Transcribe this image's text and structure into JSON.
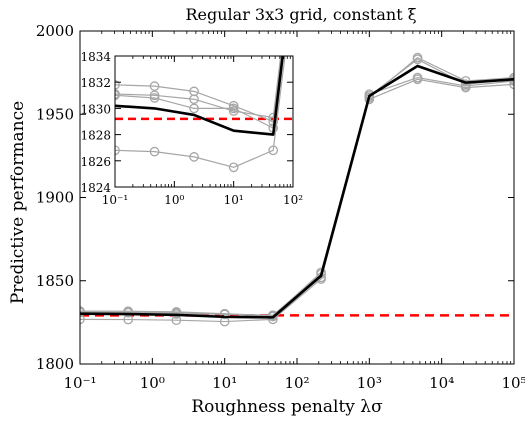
{
  "chart_data": {
    "type": "line",
    "title": "Regular 3x3 grid, constant ξ",
    "xlabel": "Roughness penalty λσ",
    "ylabel": "Predictive performance",
    "xscale": "log",
    "xlim": [
      0.1,
      100000
    ],
    "ylim": [
      1800,
      2000
    ],
    "x_ticks": [
      {
        "value": 0.1,
        "label": "10⁻¹"
      },
      {
        "value": 1,
        "label": "10⁰"
      },
      {
        "value": 10,
        "label": "10¹"
      },
      {
        "value": 100,
        "label": "10²"
      },
      {
        "value": 1000,
        "label": "10³"
      },
      {
        "value": 10000,
        "label": "10⁴"
      },
      {
        "value": 100000,
        "label": "10⁵"
      }
    ],
    "y_ticks": [
      {
        "value": 1800,
        "label": "1800"
      },
      {
        "value": 1850,
        "label": "1850"
      },
      {
        "value": 1900,
        "label": "1900"
      },
      {
        "value": 1950,
        "label": "1950"
      },
      {
        "value": 2000,
        "label": "2000"
      }
    ],
    "x": [
      0.1,
      0.464,
      2.15,
      10,
      46.4,
      215,
      1000,
      4640,
      21500,
      100000
    ],
    "series": [
      {
        "values": [
          1830.2,
          1830.0,
          1829.5,
          1828.3,
          1828.0,
          1853,
          1961,
          1979,
          1969,
          1971
        ],
        "color": "#000000",
        "style": "solid-thick",
        "marker": "none"
      },
      {
        "values": [
          1831.8,
          1831.7,
          1831.3,
          1830.2,
          1829.0,
          1852,
          1960,
          1984,
          1970,
          1972
        ],
        "color": "#a6a6a6",
        "style": "solid",
        "marker": "circle"
      },
      {
        "values": [
          1831.1,
          1831.0,
          1830.7,
          1829.8,
          1829.3,
          1854,
          1961,
          1983,
          1968,
          1971
        ],
        "color": "#a6a6a6",
        "style": "solid",
        "marker": "circle"
      },
      {
        "values": [
          1831.0,
          1830.8,
          1830.0,
          1830.0,
          1828.5,
          1855,
          1962,
          1972,
          1967,
          1970
        ],
        "color": "#a6a6a6",
        "style": "solid",
        "marker": "circle"
      },
      {
        "values": [
          1826.8,
          1826.7,
          1826.3,
          1825.5,
          1826.8,
          1851,
          1959,
          1971,
          1966,
          1968
        ],
        "color": "#a6a6a6",
        "style": "solid",
        "marker": "circle"
      }
    ],
    "reference_line": {
      "value": 1829.2,
      "color": "#ff0000",
      "style": "dashed"
    },
    "inset": {
      "xscale": "log",
      "xlim": [
        0.1,
        100
      ],
      "ylim": [
        1824,
        1834
      ],
      "x_ticks": [
        {
          "value": 0.1,
          "label": "10⁻¹"
        },
        {
          "value": 1,
          "label": "10⁰"
        },
        {
          "value": 10,
          "label": "10¹"
        },
        {
          "value": 100,
          "label": "10²"
        }
      ],
      "y_ticks": [
        {
          "value": 1824,
          "label": "1824"
        },
        {
          "value": 1826,
          "label": "1826"
        },
        {
          "value": 1828,
          "label": "1828"
        },
        {
          "value": 1830,
          "label": "1830"
        },
        {
          "value": 1832,
          "label": "1832"
        },
        {
          "value": 1834,
          "label": "1834"
        }
      ]
    },
    "grid": false,
    "legend": "none"
  }
}
